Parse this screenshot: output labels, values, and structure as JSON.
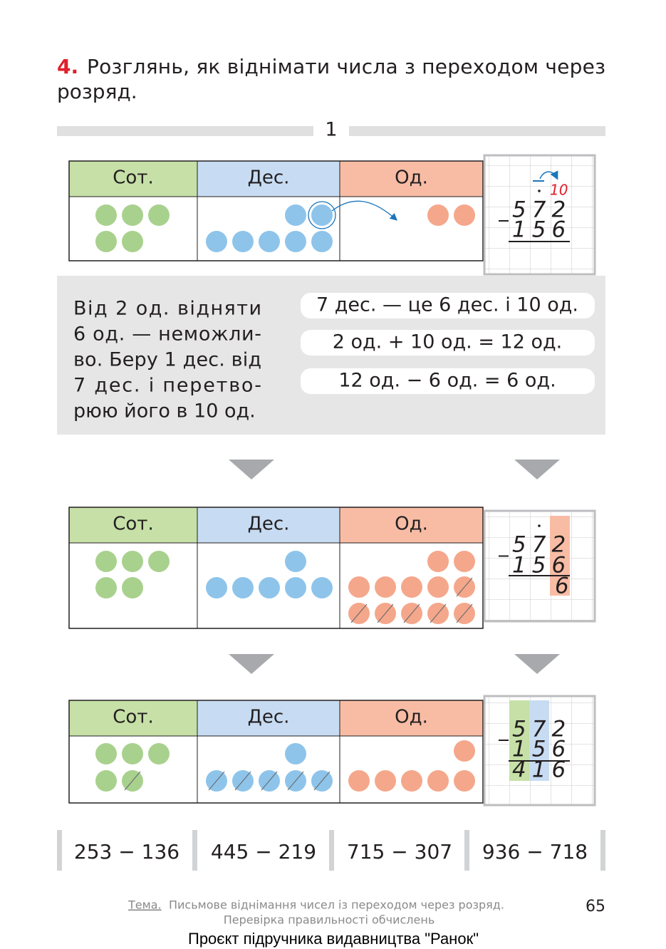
{
  "task": {
    "number": "4.",
    "lines": [
      "Розглянь, як віднімати числа з переходом через",
      "розряд."
    ]
  },
  "step": "1",
  "tables": [
    {
      "headers": [
        "Сот.",
        "Дес.",
        "Од."
      ]
    },
    {
      "headers": [
        "Сот.",
        "Дес.",
        "Од."
      ]
    },
    {
      "headers": [
        "Сот.",
        "Дес.",
        "Од."
      ]
    }
  ],
  "calculations": [
    {
      "carry": "10",
      "minuend": "572",
      "subtrahend": "156"
    },
    {
      "minuend": "572",
      "subtrahend": "156",
      "result": "6"
    },
    {
      "minuend": "572",
      "subtrahend": "156",
      "result": "416"
    }
  ],
  "explanation": {
    "lines": [
      "Від 2 од. відняти",
      "6 од. — неможли-",
      "во. Беру 1 дес. від",
      "7 дес. і перетво-",
      "рюю його в 10 од."
    ],
    "steps": [
      "7 дес. — це 6 дес. і 10 од.",
      "2 од. + 10 од. = 12 од.",
      "12 од. − 6 од. = 6 од."
    ]
  },
  "exercises": [
    "253 − 136",
    "445 − 219",
    "715 − 307",
    "936 − 718"
  ],
  "footer": {
    "topic_label": "Тема.",
    "topic": "Письмове віднімання чисел із переходом через розряд.",
    "subtopic": "Перевірка правильності обчислень",
    "page": "65",
    "project": "Проєкт підручника видавництва \"Ранок\""
  }
}
